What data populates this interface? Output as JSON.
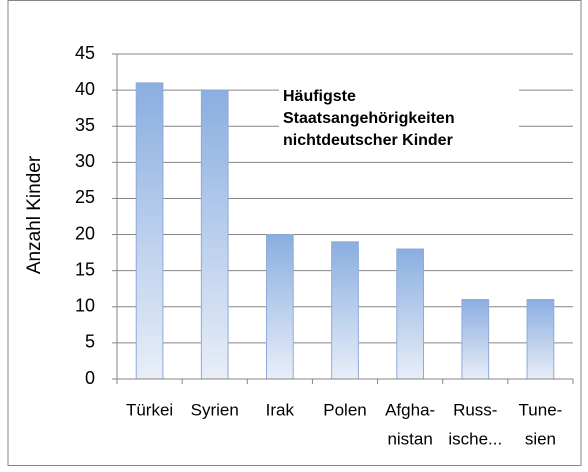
{
  "chart_data": {
    "type": "bar",
    "title": [
      "Häufigste",
      "Staatsangehörigkeiten",
      "nichtdeutscher Kinder"
    ],
    "y_label": "Anzahl Kinder",
    "categories": [
      [
        "Türkei"
      ],
      [
        "Syrien"
      ],
      [
        "Irak"
      ],
      [
        "Polen"
      ],
      [
        "Afgha-",
        "nistan"
      ],
      [
        "Russ-",
        "ische..."
      ],
      [
        "Tune-",
        "sien"
      ]
    ],
    "values": [
      41,
      40,
      20,
      19,
      18,
      11,
      11
    ],
    "color": "#8aaee0",
    "ylim": [
      0,
      45
    ],
    "yticks": [
      0,
      5,
      10,
      15,
      20,
      25,
      30,
      35,
      40,
      45
    ],
    "grid": true
  }
}
